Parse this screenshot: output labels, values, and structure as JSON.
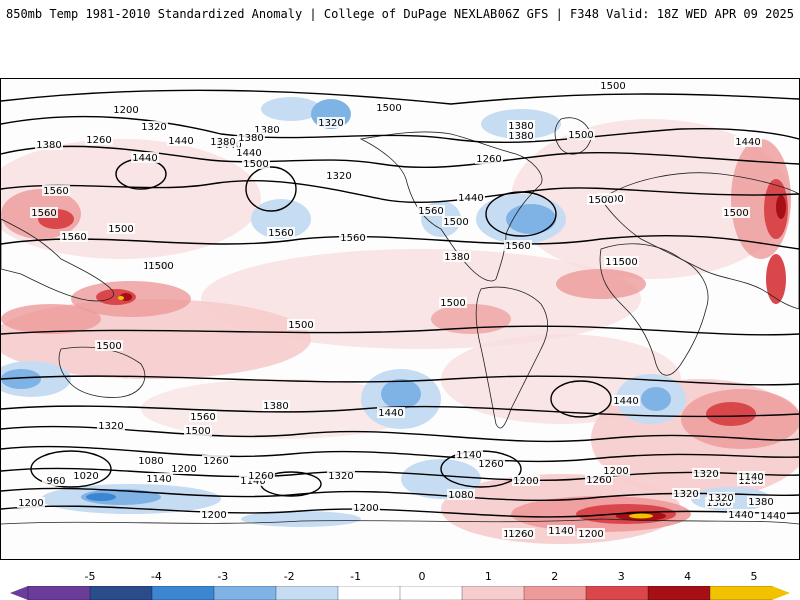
{
  "header": {
    "title": "850mb Temp 1981-2010 Standardized Anomaly | College of DuPage NEXLAB",
    "run_info": "06Z GFS | F348 Valid: 18Z WED APR 09 2025"
  },
  "colorbar": {
    "ticks": [
      "-5",
      "-4",
      "-3",
      "-2",
      "-1",
      "0",
      "1",
      "2",
      "3",
      "4",
      "5"
    ],
    "colors": {
      "neg5": "#6a3d9a",
      "neg4": "#2b4c8c",
      "neg3": "#3b86d1",
      "neg2": "#7fb3e6",
      "neg1": "#c6dcf2",
      "zero": "#ffffff",
      "pos1": "#f6cccc",
      "pos2": "#ee9a9a",
      "pos3": "#d9474b",
      "pos4": "#a50f15",
      "pos5": "#f2c200"
    }
  },
  "contour_labels": [
    "1200",
    "1320",
    "1380",
    "1380",
    "1440",
    "1500",
    "1320",
    "1260",
    "1440",
    "1380",
    "1500",
    "1440",
    "1380",
    "1500",
    "1260",
    "1560",
    "1500",
    "1560",
    "1560",
    "1560",
    "1560",
    "1500",
    "1500",
    "1500",
    "1440",
    "1500",
    "1500",
    "1500",
    "1500",
    "1500",
    "1500",
    "1560",
    "1560",
    "1500",
    "1500",
    "1440",
    "1380",
    "1320",
    "1440",
    "1500",
    "1560",
    "1500",
    "1440",
    "1380",
    "1500",
    "1440",
    "1380",
    "1320",
    "1260",
    "1200",
    "1140",
    "1080",
    "1020",
    "960",
    "1140",
    "1200",
    "1260",
    "1320",
    "1380",
    "1200",
    "1260",
    "1200",
    "1140",
    "1080",
    "1200",
    "1260",
    "1320",
    "1260",
    "1200",
    "1140",
    "1200",
    "1260",
    "1320",
    "1380",
    "1140",
    "1440",
    "1200",
    "1320",
    "1380",
    "1440"
  ]
}
